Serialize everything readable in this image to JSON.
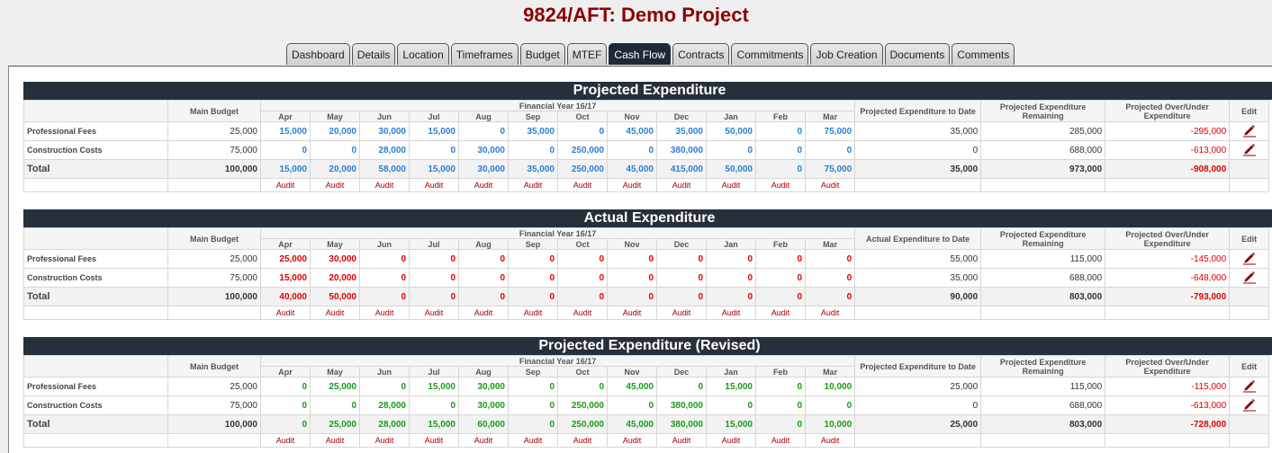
{
  "title": "9824/AFT: Demo Project",
  "tabs": [
    "Dashboard",
    "Details",
    "Location",
    "Timeframes",
    "Budget",
    "MTEF",
    "Cash Flow",
    "Contracts",
    "Commitments",
    "Job Creation",
    "Documents",
    "Comments"
  ],
  "active_tab": "Cash Flow",
  "months": [
    "Apr",
    "May",
    "Jun",
    "Jul",
    "Aug",
    "Sep",
    "Oct",
    "Nov",
    "Dec",
    "Jan",
    "Feb",
    "Mar"
  ],
  "financial_year": "Financial Year 16/17",
  "main_budget_label": "Main Budget",
  "remaining_label": "Projected Expenditure Remaining",
  "over_under_label": "Projected Over/Under Expenditure",
  "edit_label": "Edit",
  "audit_label": "Audit",
  "sections": [
    {
      "title": "Projected Expenditure",
      "to_date_label": "Projected Expenditure to Date",
      "value_color": "#2a7fd4",
      "rows": [
        {
          "label": "Professional Fees",
          "budget": "25,000",
          "months": [
            "15,000",
            "20,000",
            "30,000",
            "15,000",
            "0",
            "35,000",
            "0",
            "45,000",
            "35,000",
            "50,000",
            "0",
            "75,000"
          ],
          "to_date": "35,000",
          "remaining": "285,000",
          "over_under": "-295,000"
        },
        {
          "label": "Construction Costs",
          "budget": "75,000",
          "months": [
            "0",
            "0",
            "28,000",
            "0",
            "30,000",
            "0",
            "250,000",
            "0",
            "380,000",
            "0",
            "0",
            "0"
          ],
          "to_date": "0",
          "remaining": "688,000",
          "over_under": "-613,000"
        },
        {
          "label": "Total",
          "budget": "100,000",
          "months": [
            "15,000",
            "20,000",
            "58,000",
            "15,000",
            "30,000",
            "35,000",
            "250,000",
            "45,000",
            "415,000",
            "50,000",
            "0",
            "75,000"
          ],
          "to_date": "35,000",
          "remaining": "973,000",
          "over_under": "-908,000"
        }
      ]
    },
    {
      "title": "Actual Expenditure",
      "to_date_label": "Actual Expenditure to Date",
      "value_color": "#e00000",
      "rows": [
        {
          "label": "Professional Fees",
          "budget": "25,000",
          "months": [
            "25,000",
            "30,000",
            "0",
            "0",
            "0",
            "0",
            "0",
            "0",
            "0",
            "0",
            "0",
            "0"
          ],
          "to_date": "55,000",
          "remaining": "115,000",
          "over_under": "-145,000"
        },
        {
          "label": "Construction Costs",
          "budget": "75,000",
          "months": [
            "15,000",
            "20,000",
            "0",
            "0",
            "0",
            "0",
            "0",
            "0",
            "0",
            "0",
            "0",
            "0"
          ],
          "to_date": "35,000",
          "remaining": "688,000",
          "over_under": "-648,000"
        },
        {
          "label": "Total",
          "budget": "100,000",
          "months": [
            "40,000",
            "50,000",
            "0",
            "0",
            "0",
            "0",
            "0",
            "0",
            "0",
            "0",
            "0",
            "0"
          ],
          "to_date": "90,000",
          "remaining": "803,000",
          "over_under": "-793,000"
        }
      ]
    },
    {
      "title": "Projected Expenditure (Revised)",
      "to_date_label": "Projected Expenditure to Date",
      "value_color": "#1a9a1a",
      "rows": [
        {
          "label": "Professional Fees",
          "budget": "25,000",
          "months": [
            "0",
            "25,000",
            "0",
            "15,000",
            "30,000",
            "0",
            "0",
            "45,000",
            "0",
            "15,000",
            "0",
            "10,000"
          ],
          "to_date": "25,000",
          "remaining": "115,000",
          "over_under": "-115,000"
        },
        {
          "label": "Construction Costs",
          "budget": "75,000",
          "months": [
            "0",
            "0",
            "28,000",
            "0",
            "30,000",
            "0",
            "250,000",
            "0",
            "380,000",
            "0",
            "0",
            "0"
          ],
          "to_date": "0",
          "remaining": "688,000",
          "over_under": "-613,000"
        },
        {
          "label": "Total",
          "budget": "100,000",
          "months": [
            "0",
            "25,000",
            "28,000",
            "15,000",
            "60,000",
            "0",
            "250,000",
            "45,000",
            "380,000",
            "15,000",
            "0",
            "10,000"
          ],
          "to_date": "25,000",
          "remaining": "803,000",
          "over_under": "-728,000"
        }
      ]
    }
  ]
}
